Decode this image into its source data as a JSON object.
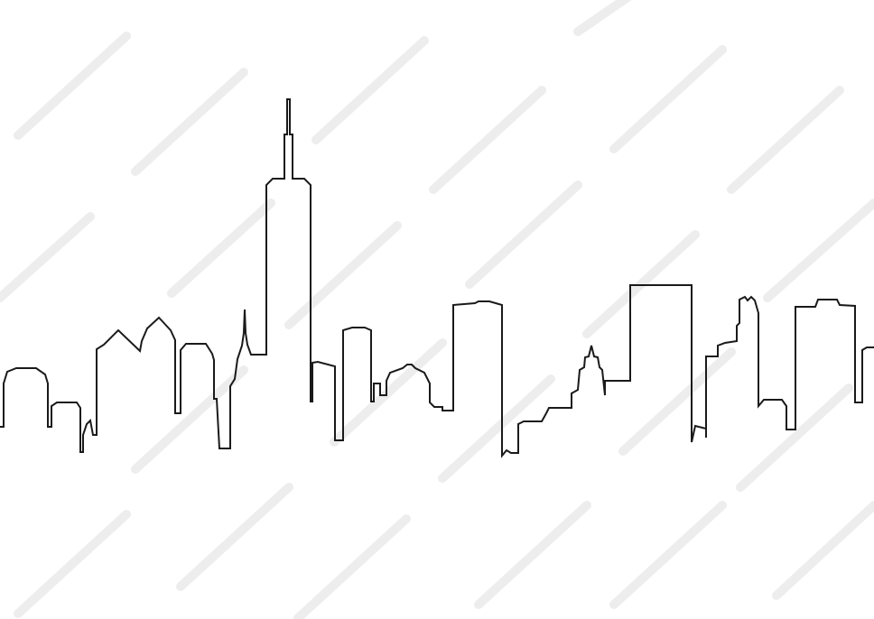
{
  "scene": {
    "background_color": "#ffffff",
    "line_color": "#1a1a1a",
    "watermark_color": "#e6e6e6",
    "subject": "skyline-outline"
  }
}
